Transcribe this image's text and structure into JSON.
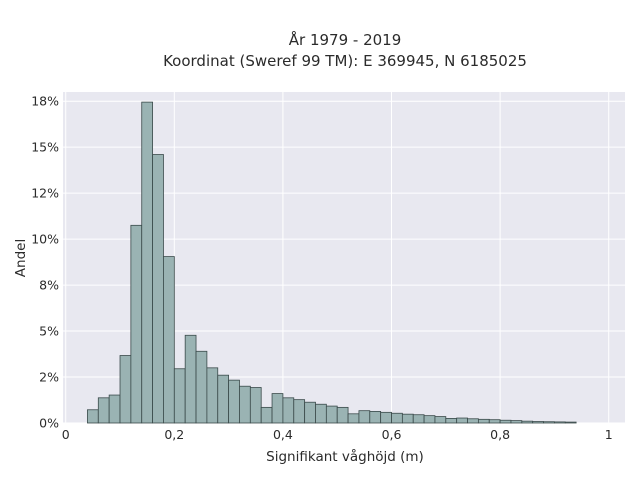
{
  "chart_data": {
    "type": "bar",
    "title_line1": "År 1979 - 2019",
    "title_line2": "Koordinat (Sweref 99 TM): E 369945, N 6185025",
    "xlabel": "Signifikant våghöjd (m)",
    "ylabel": "Andel",
    "xlim": [
      -0.005,
      1.03
    ],
    "ylim": [
      0,
      0.18
    ],
    "x_ticks": [
      0,
      0.2,
      0.4,
      0.6,
      0.8,
      1.0
    ],
    "x_tick_labels": [
      "0",
      "0,2",
      "0,4",
      "0,6",
      "0,8",
      "1"
    ],
    "y_ticks": [
      0,
      0.025,
      0.05,
      0.075,
      0.1,
      0.125,
      0.15,
      0.175
    ],
    "y_tick_labels": [
      "0%",
      "2%",
      "5%",
      "8%",
      "10%",
      "12%",
      "15%",
      "18%"
    ],
    "bin_width": 0.02,
    "bin_starts": [
      0.04,
      0.06,
      0.08,
      0.1,
      0.12,
      0.14,
      0.16,
      0.18,
      0.2,
      0.22,
      0.24,
      0.26,
      0.28,
      0.3,
      0.32,
      0.34,
      0.36,
      0.38,
      0.4,
      0.42,
      0.44,
      0.46,
      0.48,
      0.5,
      0.52,
      0.54,
      0.56,
      0.58,
      0.6,
      0.62,
      0.64,
      0.66,
      0.68,
      0.7,
      0.72,
      0.74,
      0.76,
      0.78,
      0.8,
      0.82,
      0.84,
      0.86,
      0.88,
      0.9,
      0.92
    ],
    "values": [
      0.0072,
      0.0137,
      0.0152,
      0.0367,
      0.1075,
      0.1745,
      0.146,
      0.0905,
      0.0295,
      0.0477,
      0.039,
      0.03,
      0.026,
      0.0233,
      0.02,
      0.0193,
      0.0085,
      0.016,
      0.0137,
      0.0127,
      0.0113,
      0.0102,
      0.0092,
      0.0085,
      0.005,
      0.0067,
      0.0063,
      0.0058,
      0.0053,
      0.0048,
      0.0045,
      0.004,
      0.0035,
      0.0025,
      0.0027,
      0.0023,
      0.002,
      0.0018,
      0.0015,
      0.0013,
      0.001,
      0.0008,
      0.0007,
      0.0006,
      0.0005
    ],
    "bar_color": "#9ab3b3",
    "bar_edge": "#3a4a4a",
    "background": "#e8e8f0",
    "grid": true
  }
}
